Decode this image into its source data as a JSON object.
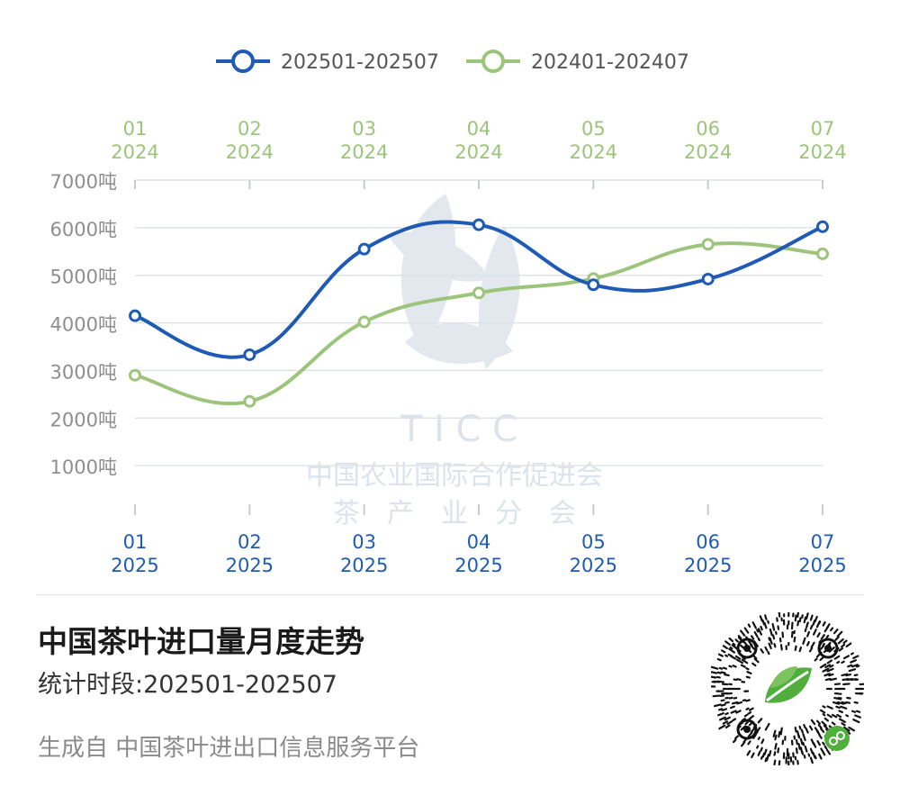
{
  "chart_data": {
    "type": "line",
    "categories_bottom": [
      [
        "01",
        "2025"
      ],
      [
        "02",
        "2025"
      ],
      [
        "03",
        "2025"
      ],
      [
        "04",
        "2025"
      ],
      [
        "05",
        "2025"
      ],
      [
        "06",
        "2025"
      ],
      [
        "07",
        "2025"
      ]
    ],
    "categories_top": [
      [
        "01",
        "2024"
      ],
      [
        "02",
        "2024"
      ],
      [
        "03",
        "2024"
      ],
      [
        "04",
        "2024"
      ],
      [
        "05",
        "2024"
      ],
      [
        "06",
        "2024"
      ],
      [
        "07",
        "2024"
      ]
    ],
    "y_ticks": [
      1000,
      2000,
      3000,
      4000,
      5000,
      6000,
      7000
    ],
    "y_tick_suffix": "吨",
    "ylim": [
      0,
      7000
    ],
    "legend_position": "top",
    "grid": true,
    "series": [
      {
        "name": "202501-202507",
        "color": "#1f5bb5",
        "axis": "bottom",
        "values": [
          4150,
          3330,
          5550,
          6060,
          4800,
          4920,
          6020
        ]
      },
      {
        "name": "202401-202407",
        "color": "#9cc47a",
        "axis": "top",
        "values": [
          2900,
          2350,
          4020,
          4630,
          4930,
          5650,
          5450
        ]
      }
    ]
  },
  "watermark": {
    "acronym": "T I C C",
    "org": "中国农业国际合作促进会",
    "branch": "茶　产　业　分　会"
  },
  "info": {
    "title": "中国茶叶进口量月度走势",
    "period": "统计时段:202501-202507",
    "footer": "生成自 中国茶叶进出口信息服务平台"
  },
  "qr": {
    "icon": "qr-code-icon",
    "accent": "#4fae3c",
    "badge": "mini-program-icon"
  }
}
